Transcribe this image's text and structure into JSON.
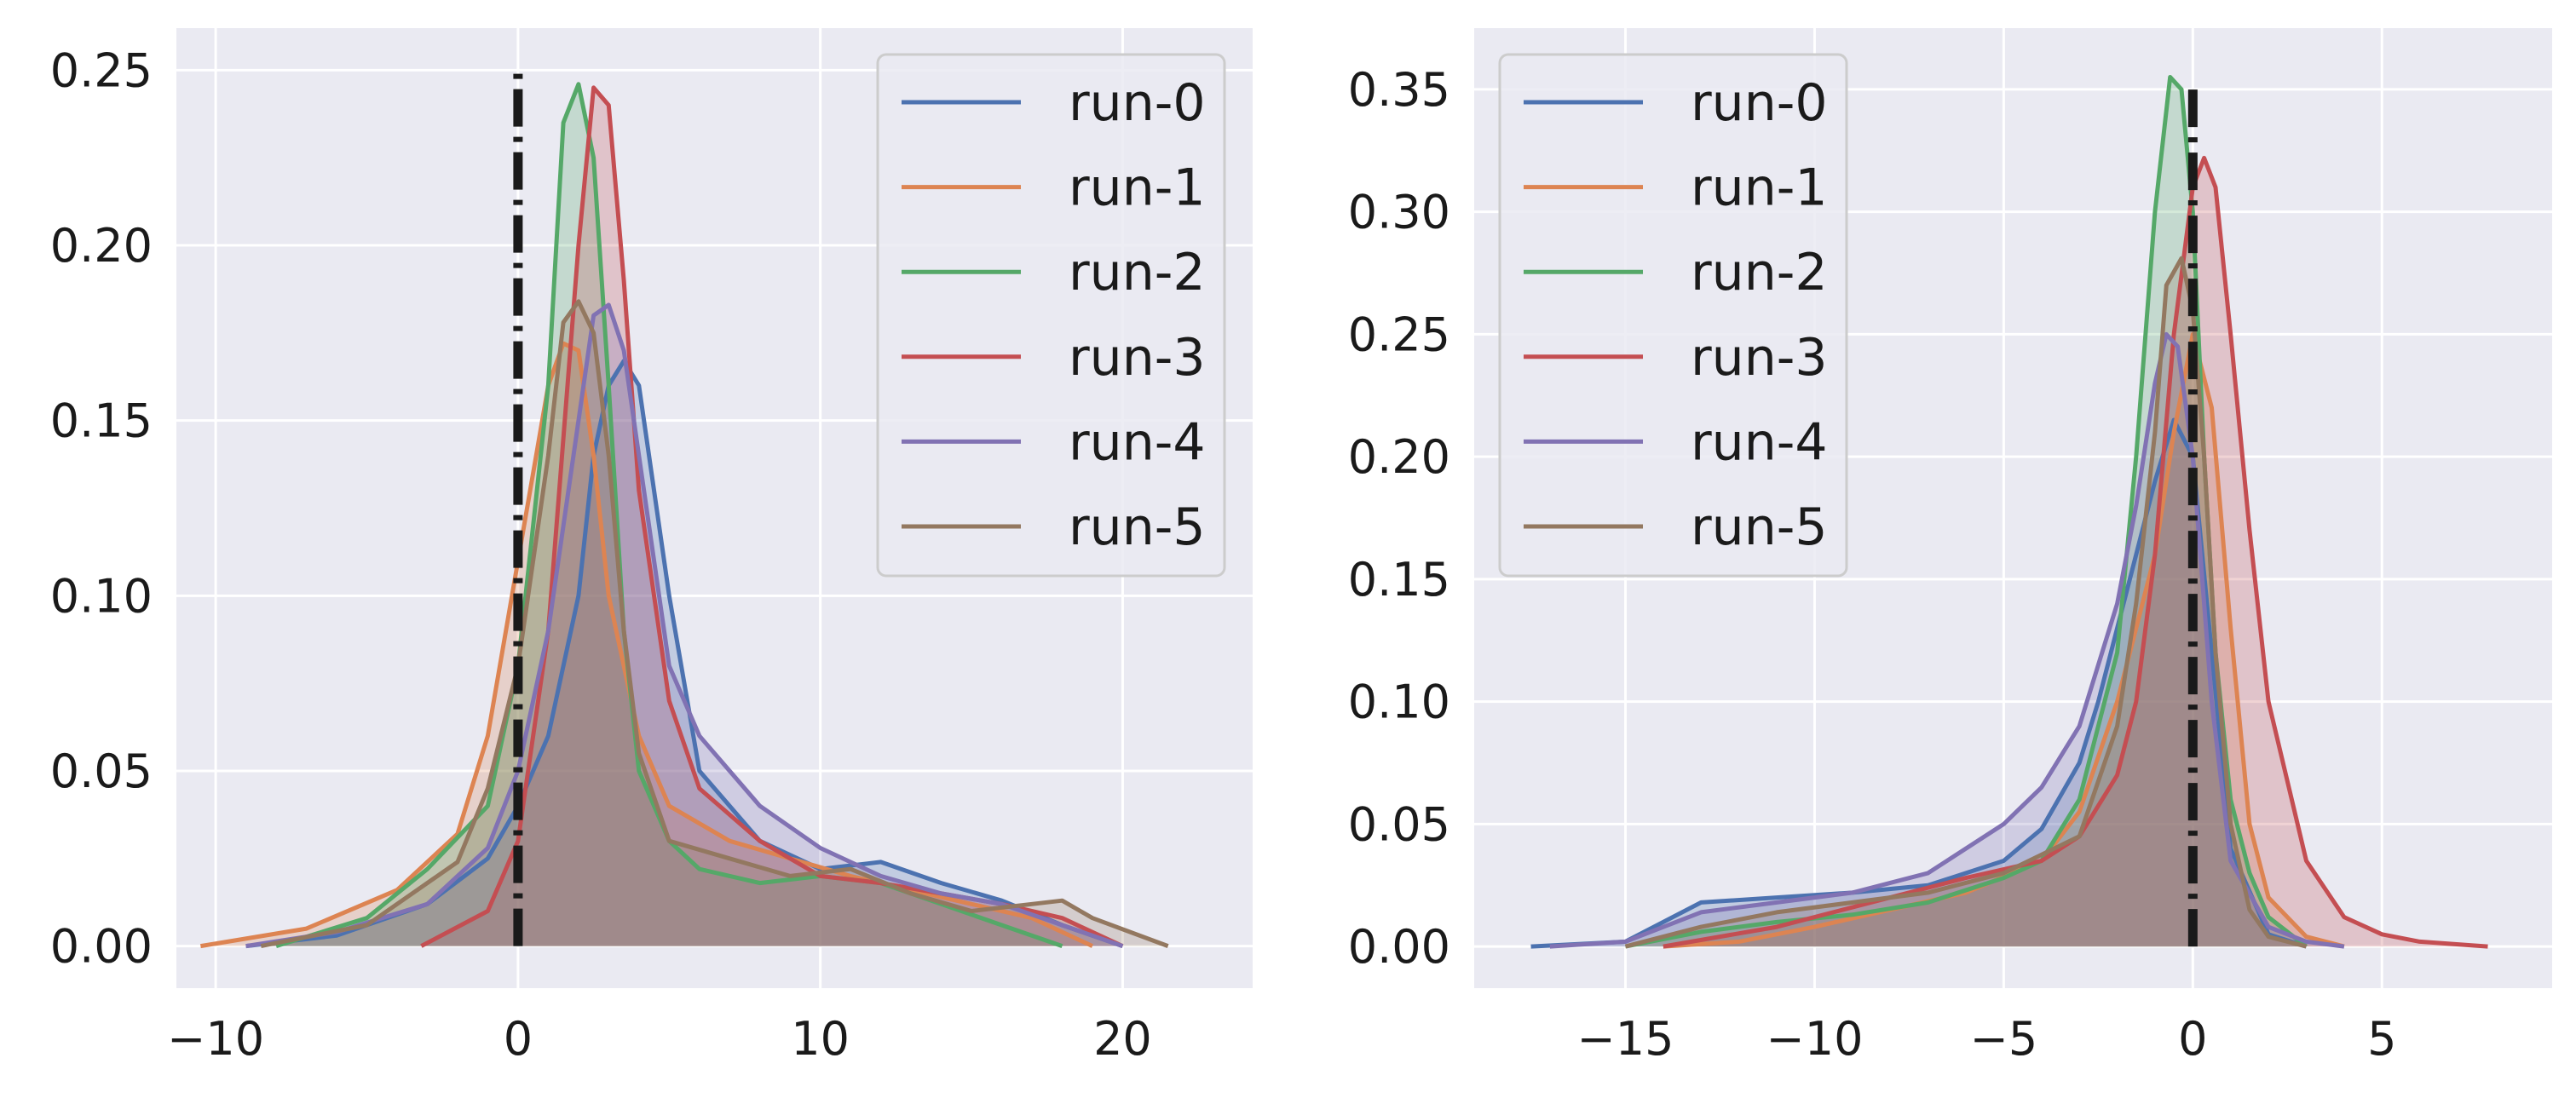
{
  "chart_data": [
    {
      "type": "area",
      "title": "",
      "xlabel": "",
      "ylabel": "",
      "xlim": [
        -11.3,
        24.3
      ],
      "ylim": [
        -0.012,
        0.262
      ],
      "xticks": [
        -10,
        0,
        10,
        20
      ],
      "xtick_labels": [
        "−10",
        "0",
        "10",
        "20"
      ],
      "yticks": [
        0.0,
        0.05,
        0.1,
        0.15,
        0.2,
        0.25
      ],
      "ytick_labels": [
        "0.00",
        "0.05",
        "0.10",
        "0.15",
        "0.20",
        "0.25"
      ],
      "grid": true,
      "legend_position": "top-right",
      "vline": {
        "x": 0,
        "style": "dash-dot",
        "color": "#1a1a1a"
      },
      "series": [
        {
          "name": "run-0",
          "color": "#4c72b0",
          "x": [
            -9,
            -6,
            -3,
            -1,
            0,
            1,
            2,
            2.5,
            3,
            3.5,
            4,
            5,
            6,
            8,
            10,
            12,
            14,
            16,
            18,
            20
          ],
          "y": [
            0.0,
            0.003,
            0.012,
            0.025,
            0.04,
            0.06,
            0.1,
            0.14,
            0.16,
            0.167,
            0.16,
            0.1,
            0.05,
            0.03,
            0.022,
            0.024,
            0.018,
            0.013,
            0.006,
            0.0
          ]
        },
        {
          "name": "run-1",
          "color": "#dd8452",
          "x": [
            -10.5,
            -7,
            -4,
            -2,
            -1,
            0,
            1,
            1.5,
            2,
            2.5,
            3,
            4,
            5,
            7,
            9,
            11,
            13,
            15,
            17,
            19
          ],
          "y": [
            0.0,
            0.005,
            0.016,
            0.032,
            0.06,
            0.11,
            0.16,
            0.172,
            0.17,
            0.14,
            0.1,
            0.06,
            0.04,
            0.03,
            0.025,
            0.02,
            0.016,
            0.012,
            0.008,
            0.0
          ]
        },
        {
          "name": "run-2",
          "color": "#55a868",
          "x": [
            -8,
            -5,
            -3,
            -1,
            0,
            1,
            1.5,
            2,
            2.5,
            3,
            3.5,
            4,
            5,
            6,
            8,
            10,
            12,
            14,
            16,
            18
          ],
          "y": [
            0.0,
            0.008,
            0.022,
            0.04,
            0.08,
            0.16,
            0.235,
            0.246,
            0.225,
            0.16,
            0.09,
            0.05,
            0.03,
            0.022,
            0.018,
            0.02,
            0.018,
            0.012,
            0.006,
            0.0
          ]
        },
        {
          "name": "run-3",
          "color": "#c44e52",
          "x": [
            -3.2,
            -1,
            0,
            1,
            2,
            2.5,
            3,
            3.5,
            4,
            5,
            6,
            8,
            10,
            12,
            14,
            16,
            18,
            20
          ],
          "y": [
            0.0,
            0.01,
            0.03,
            0.09,
            0.2,
            0.245,
            0.24,
            0.19,
            0.13,
            0.07,
            0.045,
            0.03,
            0.02,
            0.018,
            0.015,
            0.012,
            0.008,
            0.0
          ]
        },
        {
          "name": "run-4",
          "color": "#8172b3",
          "x": [
            -9,
            -6,
            -3,
            -1,
            0,
            1,
            2,
            2.5,
            3,
            3.5,
            4,
            5,
            6,
            8,
            10,
            12,
            14,
            16,
            18,
            20
          ],
          "y": [
            0.0,
            0.004,
            0.012,
            0.028,
            0.05,
            0.09,
            0.15,
            0.18,
            0.183,
            0.17,
            0.14,
            0.08,
            0.06,
            0.04,
            0.028,
            0.02,
            0.015,
            0.012,
            0.006,
            0.0
          ]
        },
        {
          "name": "run-5",
          "color": "#937860",
          "x": [
            -8.5,
            -5,
            -2,
            -1,
            0,
            1,
            1.5,
            2,
            2.5,
            3,
            3.5,
            4,
            5,
            7,
            9,
            11,
            13,
            15,
            17,
            18,
            19,
            21.5
          ],
          "y": [
            0.0,
            0.006,
            0.024,
            0.045,
            0.08,
            0.14,
            0.178,
            0.184,
            0.175,
            0.14,
            0.09,
            0.055,
            0.03,
            0.025,
            0.02,
            0.022,
            0.015,
            0.01,
            0.012,
            0.013,
            0.008,
            0.0
          ]
        }
      ]
    },
    {
      "type": "area",
      "title": "",
      "xlabel": "",
      "ylabel": "",
      "xlim": [
        -19.0,
        9.5
      ],
      "ylim": [
        -0.017,
        0.375
      ],
      "xticks": [
        -15,
        -10,
        -5,
        0,
        5
      ],
      "xtick_labels": [
        "−15",
        "−10",
        "−5",
        "0",
        "5"
      ],
      "yticks": [
        0.0,
        0.05,
        0.1,
        0.15,
        0.2,
        0.25,
        0.3,
        0.35
      ],
      "ytick_labels": [
        "0.00",
        "0.05",
        "0.10",
        "0.15",
        "0.20",
        "0.25",
        "0.30",
        "0.35"
      ],
      "grid": true,
      "legend_position": "top-left",
      "vline": {
        "x": 0,
        "style": "dash-dot",
        "color": "#1a1a1a"
      },
      "series": [
        {
          "name": "run-0",
          "color": "#4c72b0",
          "x": [
            -17.5,
            -15,
            -13,
            -11,
            -9,
            -7,
            -5,
            -4,
            -3,
            -2.5,
            -2,
            -1.5,
            -1,
            -0.5,
            0,
            0.5,
            1,
            2,
            3
          ],
          "y": [
            0.0,
            0.002,
            0.018,
            0.02,
            0.022,
            0.025,
            0.035,
            0.048,
            0.075,
            0.1,
            0.13,
            0.16,
            0.19,
            0.215,
            0.2,
            0.12,
            0.04,
            0.005,
            0.0
          ]
        },
        {
          "name": "run-1",
          "color": "#dd8452",
          "x": [
            -14,
            -12,
            -10,
            -8,
            -6,
            -4,
            -3,
            -2,
            -1.5,
            -1,
            -0.5,
            0,
            0.5,
            1,
            1.5,
            2,
            3,
            4
          ],
          "y": [
            0.0,
            0.002,
            0.008,
            0.015,
            0.022,
            0.035,
            0.055,
            0.1,
            0.13,
            0.16,
            0.21,
            0.25,
            0.22,
            0.13,
            0.05,
            0.02,
            0.004,
            0.0
          ]
        },
        {
          "name": "run-2",
          "color": "#55a868",
          "x": [
            -15,
            -13,
            -11,
            -9,
            -7,
            -5,
            -4,
            -3,
            -2,
            -1.5,
            -1,
            -0.6,
            -0.3,
            0,
            0.3,
            0.6,
            1,
            1.5,
            2,
            3
          ],
          "y": [
            0.0,
            0.006,
            0.01,
            0.013,
            0.018,
            0.028,
            0.035,
            0.06,
            0.12,
            0.2,
            0.3,
            0.355,
            0.35,
            0.3,
            0.2,
            0.12,
            0.06,
            0.03,
            0.012,
            0.0
          ]
        },
        {
          "name": "run-3",
          "color": "#c44e52",
          "x": [
            -14,
            -11,
            -8,
            -6,
            -4,
            -3,
            -2,
            -1.5,
            -1,
            -0.5,
            0,
            0.3,
            0.6,
            1,
            1.5,
            2,
            3,
            4,
            5,
            6,
            7.8
          ],
          "y": [
            0.0,
            0.008,
            0.02,
            0.028,
            0.035,
            0.045,
            0.07,
            0.1,
            0.16,
            0.25,
            0.31,
            0.322,
            0.31,
            0.25,
            0.17,
            0.1,
            0.035,
            0.012,
            0.005,
            0.002,
            0.0
          ]
        },
        {
          "name": "run-4",
          "color": "#8172b3",
          "x": [
            -17,
            -15,
            -13,
            -11,
            -9,
            -7,
            -5,
            -4,
            -3,
            -2,
            -1.5,
            -1,
            -0.7,
            -0.4,
            0,
            0.5,
            1,
            2,
            3,
            4
          ],
          "y": [
            0.0,
            0.002,
            0.014,
            0.018,
            0.022,
            0.03,
            0.05,
            0.065,
            0.09,
            0.14,
            0.18,
            0.23,
            0.25,
            0.245,
            0.2,
            0.1,
            0.035,
            0.008,
            0.002,
            0.0
          ]
        },
        {
          "name": "run-5",
          "color": "#937860",
          "x": [
            -15,
            -13,
            -11,
            -9,
            -7,
            -5,
            -3,
            -2,
            -1.5,
            -1,
            -0.7,
            -0.3,
            0,
            0.3,
            0.6,
            1,
            1.5,
            2,
            3
          ],
          "y": [
            0.0,
            0.008,
            0.014,
            0.018,
            0.022,
            0.03,
            0.045,
            0.09,
            0.14,
            0.21,
            0.27,
            0.281,
            0.26,
            0.2,
            0.12,
            0.05,
            0.015,
            0.004,
            0.0
          ]
        }
      ]
    }
  ]
}
